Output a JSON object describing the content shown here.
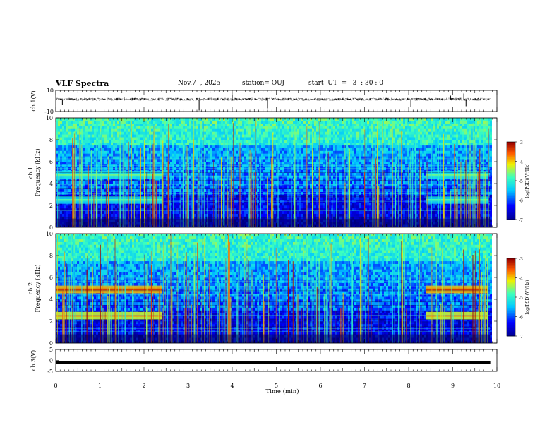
{
  "header": {
    "title": "VLF Spectra",
    "date": "Nov.7  , 2025",
    "station": "station= OUJ",
    "start": "start  UT  =   3  : 30 : 0"
  },
  "chart_data": [
    {
      "type": "line",
      "panel": "ch1-waveform",
      "ylabel": "ch.1(V)",
      "ylim": [
        -10,
        10
      ],
      "yticks": [
        "10",
        "-10"
      ],
      "description_series": "voltage waveform centered near +5 V with occasional spikes"
    },
    {
      "type": "heatmap",
      "panel": "ch1-spectrogram",
      "ylabel_line1": "ch.1",
      "ylabel_line2": "Frequency (kHz)",
      "ylim": [
        0,
        10
      ],
      "yticks": [
        "0",
        "2",
        "4",
        "6",
        "8",
        "10"
      ],
      "colorbar": {
        "label": "log(PSD)(V²/Hz)",
        "range": [
          -7,
          -3
        ],
        "ticks": [
          "-3",
          "-4",
          "-5",
          "-6",
          "-7"
        ]
      },
      "bands_khz": [
        4.8,
        2.5
      ],
      "band_active_min": [
        [
          0,
          2.4
        ],
        [
          8.4,
          9.8
        ]
      ]
    },
    {
      "type": "heatmap",
      "panel": "ch2-spectrogram",
      "ylabel_line1": "ch.2",
      "ylabel_line2": "Frequency (kHz)",
      "ylim": [
        0,
        10
      ],
      "yticks": [
        "0",
        "2",
        "4",
        "6",
        "8",
        "10"
      ],
      "colorbar": {
        "label": "log(PSD)(V²/Hz)",
        "range": [
          -7,
          -3
        ],
        "ticks": [
          "-3",
          "-4",
          "-5",
          "-6",
          "-7"
        ]
      },
      "bands_khz": [
        4.9,
        2.5
      ],
      "band_active_min": [
        [
          0,
          2.4
        ],
        [
          8.4,
          9.8
        ]
      ]
    },
    {
      "type": "line",
      "panel": "ch3-waveform",
      "ylabel": "ch.3(V)",
      "ylim": [
        -5,
        5
      ],
      "yticks": [
        "5",
        "0",
        "-5"
      ],
      "constant_value": -1
    }
  ],
  "xaxis": {
    "label": "Time (min)",
    "range": [
      0,
      10
    ],
    "ticks": [
      "0",
      "1",
      "2",
      "3",
      "4",
      "5",
      "6",
      "7",
      "8",
      "9",
      "10"
    ],
    "data_end_min": 9.85
  }
}
